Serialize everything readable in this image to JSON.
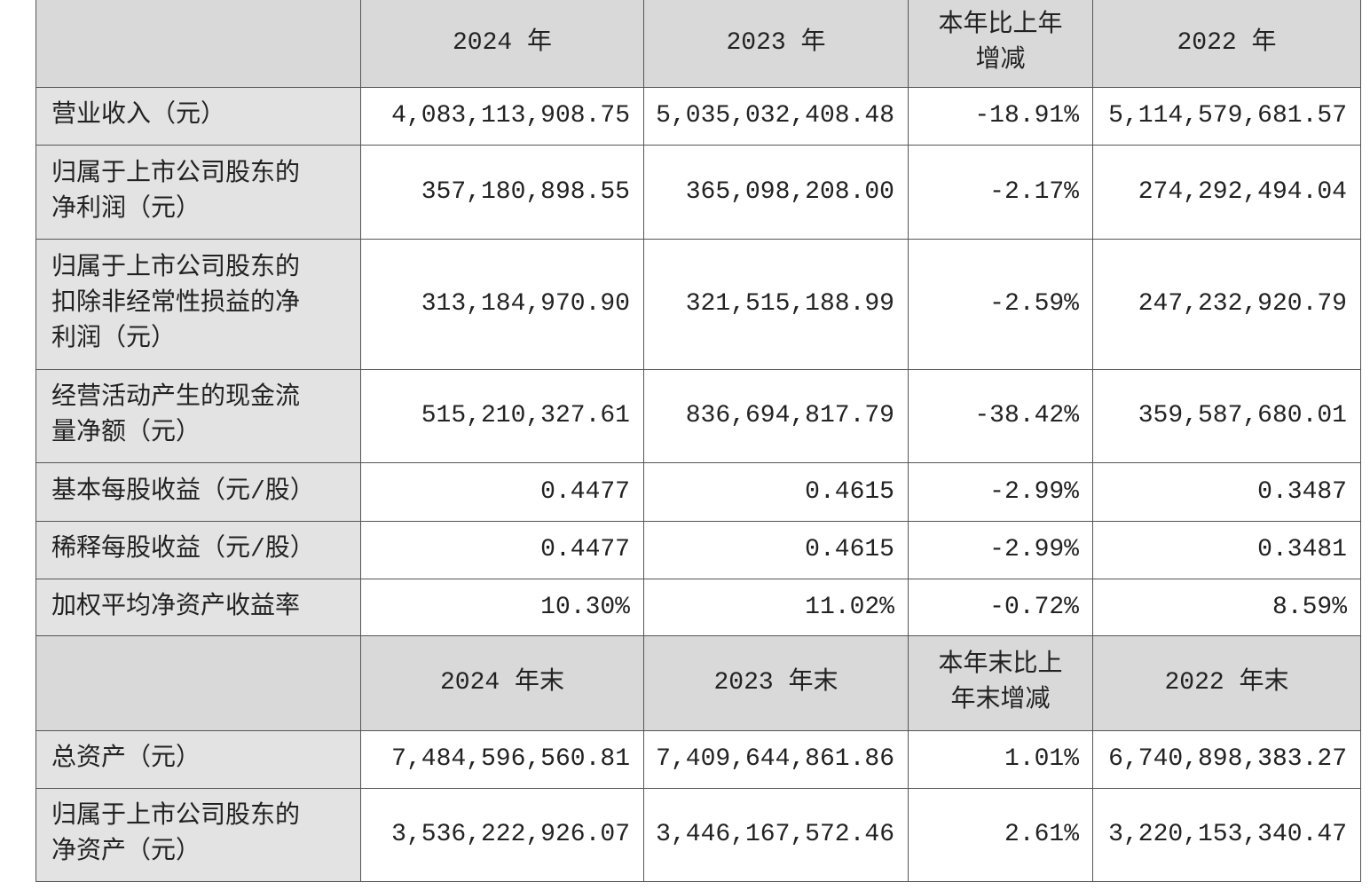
{
  "table": {
    "header1": [
      "2024 年",
      "2023 年",
      "本年比上年增减",
      "2022 年"
    ],
    "rows1": [
      [
        "营业收入（元）",
        "4,083,113,908.75",
        "5,035,032,408.48",
        "-18.91%",
        "5,114,579,681.57"
      ],
      [
        "归属于上市公司股东的净利润（元）",
        "357,180,898.55",
        "365,098,208.00",
        "-2.17%",
        "274,292,494.04"
      ],
      [
        "归属于上市公司股东的扣除非经常性损益的净利润（元）",
        "313,184,970.90",
        "321,515,188.99",
        "-2.59%",
        "247,232,920.79"
      ],
      [
        "经营活动产生的现金流量净额（元）",
        "515,210,327.61",
        "836,694,817.79",
        "-38.42%",
        "359,587,680.01"
      ],
      [
        "基本每股收益（元/股）",
        "0.4477",
        "0.4615",
        "-2.99%",
        "0.3487"
      ],
      [
        "稀释每股收益（元/股）",
        "0.4477",
        "0.4615",
        "-2.99%",
        "0.3481"
      ],
      [
        "加权平均净资产收益率",
        "10.30%",
        "11.02%",
        "-0.72%",
        "8.59%"
      ]
    ],
    "header2": [
      "2024 年末",
      "2023 年末",
      "本年末比上年末增减",
      "2022 年末"
    ],
    "rows2": [
      [
        "总资产（元）",
        "7,484,596,560.81",
        "7,409,644,861.86",
        "1.01%",
        "6,740,898,383.27"
      ],
      [
        "归属于上市公司股东的净资产（元）",
        "3,536,222,926.07",
        "3,446,167,572.46",
        "2.61%",
        "3,220,153,340.47"
      ]
    ]
  }
}
